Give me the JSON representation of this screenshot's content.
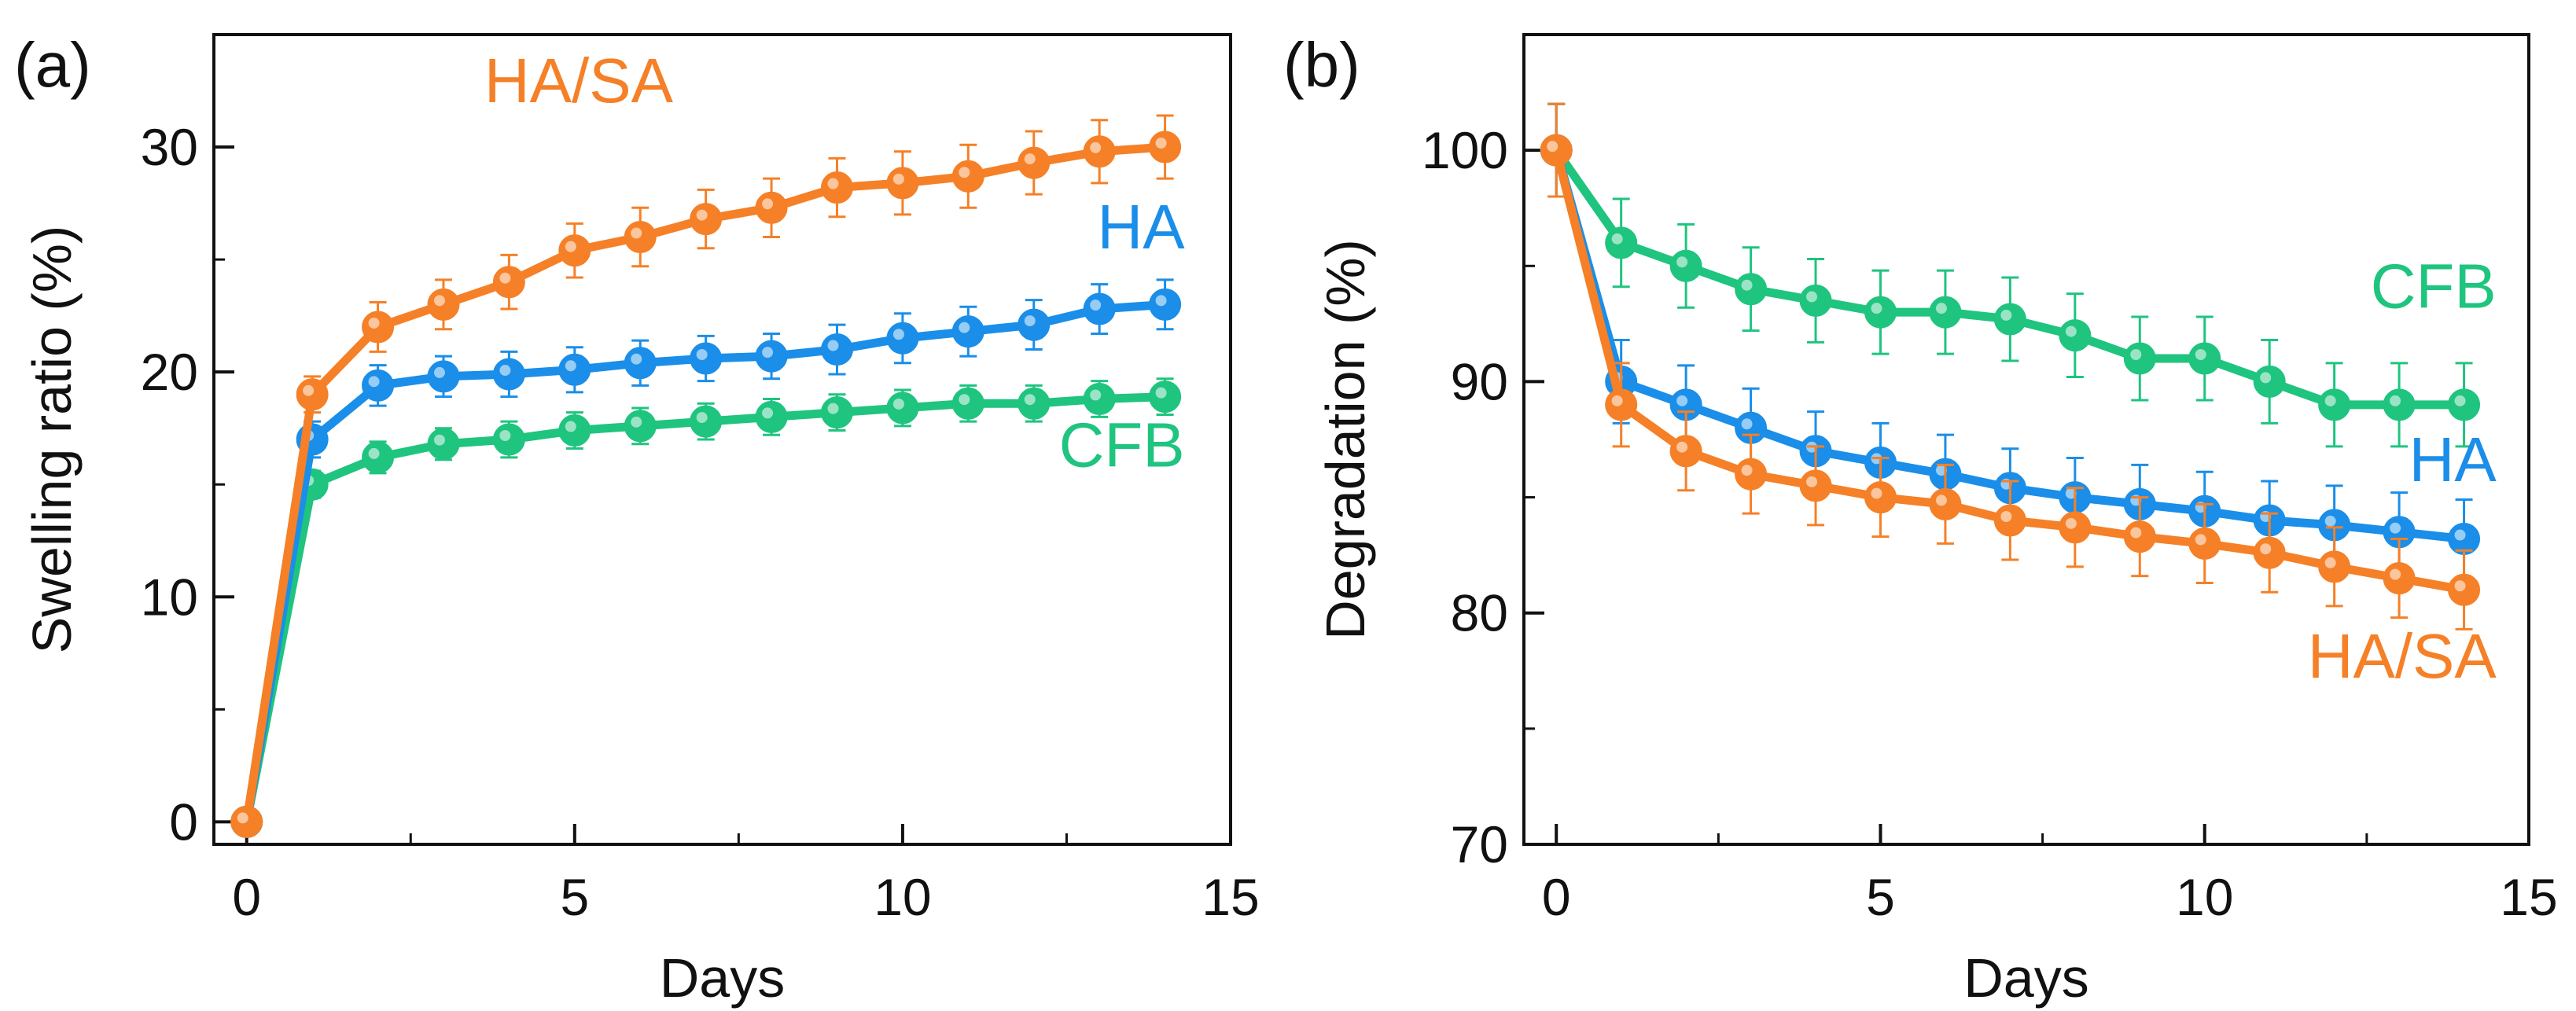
{
  "figure": {
    "background": "#ffffff"
  },
  "chart_data": [
    {
      "panel_label": "(a)",
      "type": "line",
      "title": "",
      "xlabel": "Days",
      "ylabel": "Swelling ratio (%)",
      "xlim": [
        -0.5,
        15
      ],
      "ylim": [
        -1,
        35
      ],
      "xticks": [
        0,
        5,
        10,
        15
      ],
      "yticks": [
        0,
        10,
        20,
        30
      ],
      "x_minor_step": 2.5,
      "y_minor_step": 5,
      "grid": false,
      "legend": "inline labels near each curve",
      "x": [
        0,
        1,
        2,
        3,
        4,
        5,
        6,
        7,
        8,
        9,
        10,
        11,
        12,
        13,
        14
      ],
      "series": [
        {
          "name": "CFB",
          "color": "#1fc47f",
          "label_anchor": {
            "x": 14.3,
            "y": 15.8,
            "align": "end"
          },
          "values": [
            0,
            15.0,
            16.2,
            16.8,
            17.0,
            17.4,
            17.6,
            17.8,
            18.0,
            18.2,
            18.4,
            18.6,
            18.6,
            18.8,
            18.9
          ],
          "errors": [
            0.3,
            0.6,
            0.7,
            0.7,
            0.8,
            0.8,
            0.8,
            0.8,
            0.8,
            0.8,
            0.8,
            0.8,
            0.8,
            0.8,
            0.8
          ]
        },
        {
          "name": "HA",
          "color": "#1a8ee8",
          "label_anchor": {
            "x": 14.3,
            "y": 25.5,
            "align": "end"
          },
          "values": [
            0,
            17.0,
            19.4,
            19.8,
            19.9,
            20.1,
            20.4,
            20.6,
            20.7,
            21.0,
            21.5,
            21.8,
            22.1,
            22.8,
            23.0
          ],
          "errors": [
            0.3,
            0.8,
            0.9,
            0.9,
            1.0,
            1.0,
            1.0,
            1.0,
            1.0,
            1.1,
            1.1,
            1.1,
            1.1,
            1.1,
            1.1
          ]
        },
        {
          "name": "HA/SA",
          "color": "#f58027",
          "label_anchor": {
            "x": 6.5,
            "y": 32.0,
            "align": "end"
          },
          "values": [
            0,
            19.0,
            22.0,
            23.0,
            24.0,
            25.4,
            26.0,
            26.8,
            27.3,
            28.2,
            28.4,
            28.7,
            29.3,
            29.8,
            30.0
          ],
          "errors": [
            0.3,
            0.8,
            1.1,
            1.1,
            1.2,
            1.2,
            1.3,
            1.3,
            1.3,
            1.3,
            1.4,
            1.4,
            1.4,
            1.4,
            1.4
          ]
        }
      ]
    },
    {
      "panel_label": "(b)",
      "type": "line",
      "title": "",
      "xlabel": "Days",
      "ylabel": "Degradation (%)",
      "xlim": [
        -0.5,
        15
      ],
      "ylim": [
        70,
        105
      ],
      "xticks": [
        0,
        5,
        10,
        15
      ],
      "yticks": [
        70,
        80,
        90,
        100
      ],
      "x_minor_step": 2.5,
      "y_minor_step": 5,
      "grid": false,
      "legend": "inline labels near each curve",
      "x": [
        0,
        1,
        2,
        3,
        4,
        5,
        6,
        7,
        8,
        9,
        10,
        11,
        12,
        13,
        14
      ],
      "series": [
        {
          "name": "CFB",
          "color": "#1fc47f",
          "label_anchor": {
            "x": 14.5,
            "y": 93.2,
            "align": "end"
          },
          "values": [
            100,
            96.0,
            95.0,
            94.0,
            93.5,
            93.0,
            93.0,
            92.7,
            92.0,
            91.0,
            91.0,
            90.0,
            89.0,
            89.0,
            89.0
          ],
          "errors": [
            2.0,
            1.9,
            1.8,
            1.8,
            1.8,
            1.8,
            1.8,
            1.8,
            1.8,
            1.8,
            1.8,
            1.8,
            1.8,
            1.8,
            1.8
          ]
        },
        {
          "name": "HA",
          "color": "#1a8ee8",
          "label_anchor": {
            "x": 14.5,
            "y": 85.7,
            "align": "end"
          },
          "values": [
            100,
            90.0,
            89.0,
            88.0,
            87.0,
            86.5,
            86.0,
            85.4,
            85.0,
            84.7,
            84.4,
            84.0,
            83.8,
            83.5,
            83.2
          ],
          "errors": [
            2.0,
            1.8,
            1.7,
            1.7,
            1.7,
            1.7,
            1.7,
            1.7,
            1.7,
            1.7,
            1.7,
            1.7,
            1.7,
            1.7,
            1.7
          ]
        },
        {
          "name": "HA/SA",
          "color": "#f58027",
          "label_anchor": {
            "x": 14.5,
            "y": 77.2,
            "align": "end"
          },
          "values": [
            100,
            89.0,
            87.0,
            86.0,
            85.5,
            85.0,
            84.7,
            84.0,
            83.7,
            83.3,
            83.0,
            82.6,
            82.0,
            81.5,
            81.0
          ],
          "errors": [
            2.0,
            1.8,
            1.7,
            1.7,
            1.7,
            1.7,
            1.7,
            1.7,
            1.7,
            1.7,
            1.7,
            1.7,
            1.7,
            1.7,
            1.7
          ]
        }
      ]
    }
  ]
}
